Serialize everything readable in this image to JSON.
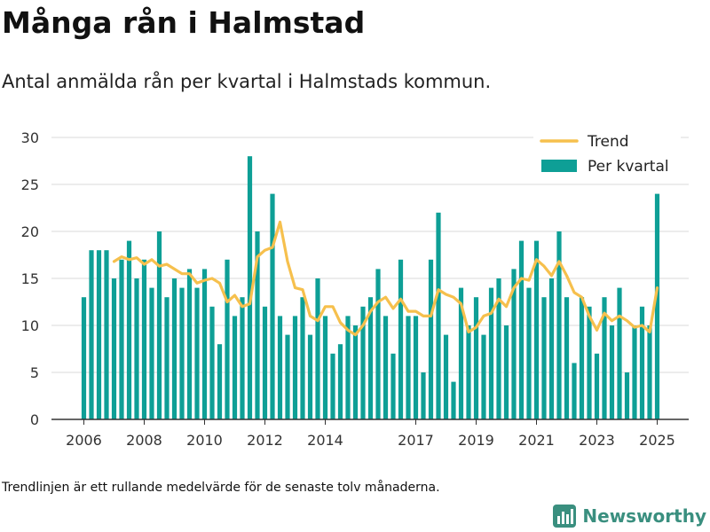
{
  "header": {
    "title": "Många rån i Halmstad",
    "subtitle": "Antal anmälda rån per kvartal i Halmstads kommun."
  },
  "footer": {
    "note": "Trendlinjen är ett rullande medelvärde för de senaste tolv månaderna.",
    "brand": "Newsworthy",
    "brand_icon": "bar-chart-icon"
  },
  "colors": {
    "bars": "#0e9f96",
    "trend": "#f6c04d",
    "grid": "#d9d9d9",
    "axis": "#333333",
    "brand": "#3a8f7f"
  },
  "chart_data": {
    "type": "bar",
    "ylim": [
      0,
      30
    ],
    "yticks": [
      0,
      5,
      10,
      15,
      20,
      25,
      30
    ],
    "grid": true,
    "legend_position": "top-right",
    "x_start": "2006-Q1",
    "xtick_labels": [
      "2006",
      "2008",
      "2010",
      "2012",
      "2014",
      "2017",
      "2019",
      "2021",
      "2023",
      "2025"
    ],
    "series": [
      {
        "name": "Per kvartal",
        "type": "bar",
        "values": [
          13,
          18,
          18,
          18,
          15,
          17,
          19,
          15,
          17,
          14,
          20,
          13,
          15,
          14,
          16,
          14,
          16,
          12,
          8,
          17,
          11,
          13,
          28,
          20,
          12,
          24,
          11,
          9,
          11,
          13,
          9,
          15,
          11,
          7,
          8,
          11,
          10,
          12,
          13,
          16,
          11,
          7,
          17,
          11,
          11,
          5,
          17,
          22,
          9,
          4,
          14,
          10,
          13,
          9,
          14,
          15,
          10,
          16,
          19,
          14,
          19,
          13,
          15,
          20,
          13,
          6,
          13,
          12,
          7,
          13,
          10,
          14,
          5,
          10,
          12,
          10,
          24
        ]
      },
      {
        "name": "Trend",
        "type": "line",
        "start_index": 4,
        "values": [
          16.8,
          17.3,
          17.0,
          17.2,
          16.5,
          17.0,
          16.3,
          16.5,
          16.0,
          15.5,
          15.5,
          14.5,
          14.8,
          15.0,
          14.5,
          12.5,
          13.2,
          12.0,
          12.3,
          17.3,
          18.0,
          18.3,
          21.0,
          16.8,
          14.0,
          13.8,
          11.0,
          10.5,
          12.0,
          12.0,
          10.3,
          9.5,
          9.0,
          10.0,
          11.5,
          12.5,
          13.0,
          11.8,
          12.8,
          11.5,
          11.5,
          11.0,
          11.0,
          13.8,
          13.3,
          13.0,
          12.3,
          9.3,
          9.8,
          11.0,
          11.3,
          12.8,
          12.0,
          14.0,
          15.0,
          14.8,
          17.0,
          16.3,
          15.3,
          16.8,
          15.3,
          13.5,
          13.0,
          11.0,
          9.5,
          11.3,
          10.5,
          11.0,
          10.5,
          9.8,
          10.0,
          9.3,
          14.0
        ]
      }
    ]
  }
}
